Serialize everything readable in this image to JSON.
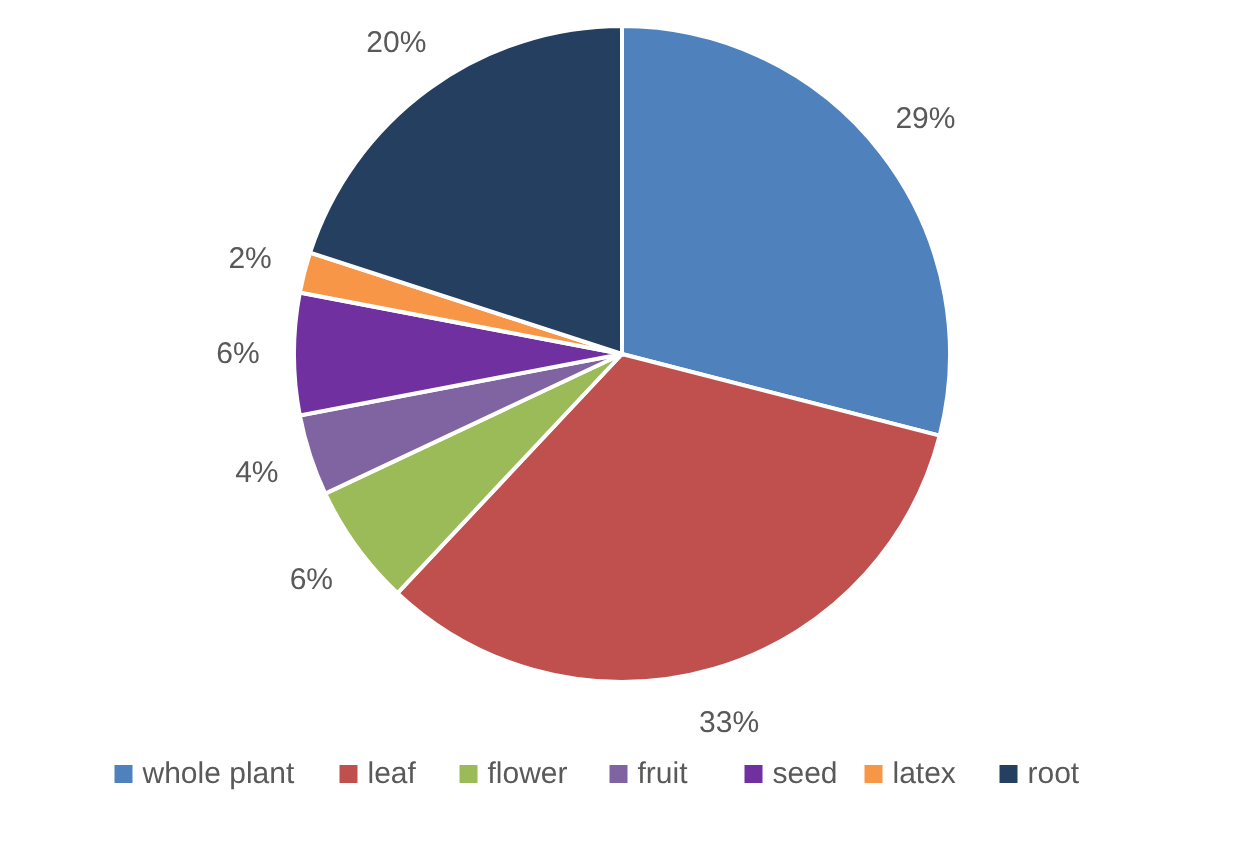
{
  "chart_data": {
    "type": "pie",
    "categories": [
      "whole plant",
      "leaf",
      "flower",
      "fruit",
      "seed",
      "latex",
      "root"
    ],
    "values": [
      29,
      33,
      6,
      4,
      6,
      2,
      20
    ],
    "colors": [
      "#4f81bd",
      "#c0504d",
      "#9bbb59",
      "#8064a2",
      "#7030a0",
      "#f79646",
      "#243f60"
    ],
    "value_labels": [
      "29%",
      "33%",
      "6%",
      "4%",
      "6%",
      "2%",
      "20%"
    ],
    "legend": "bottom"
  }
}
